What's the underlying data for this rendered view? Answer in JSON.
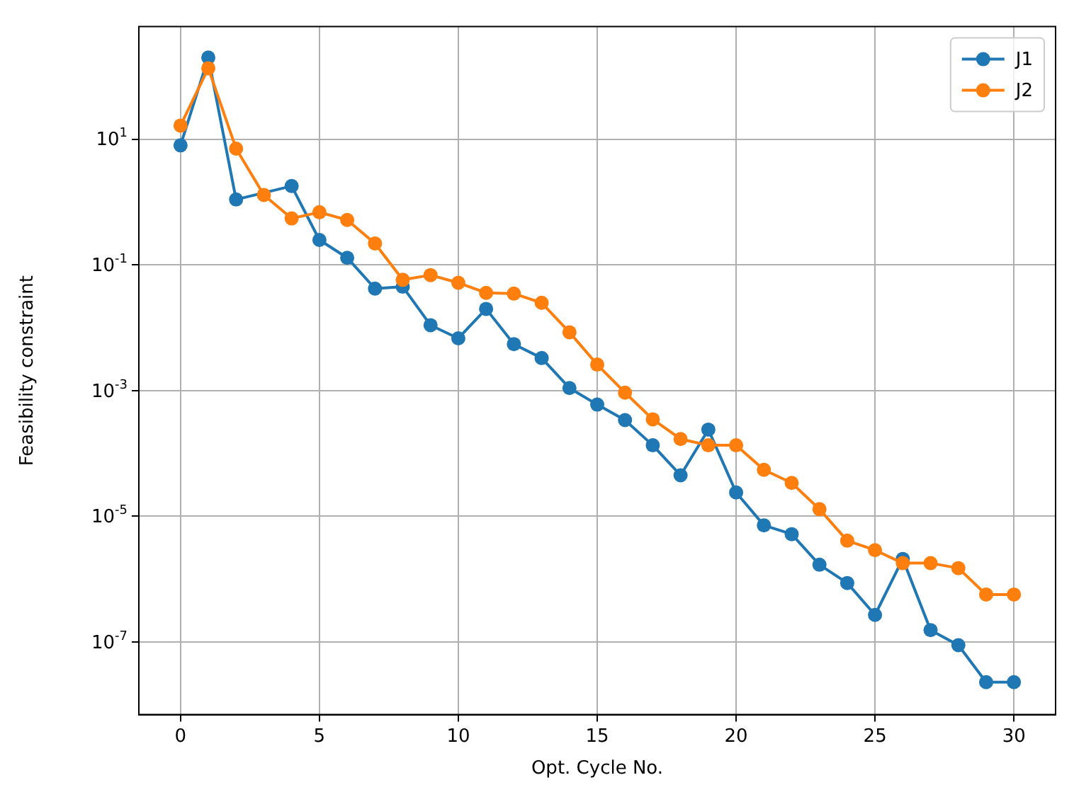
{
  "chart_data": {
    "type": "line",
    "xlabel": "Opt. Cycle No.",
    "ylabel": "Feasibility constraint",
    "x": [
      0,
      1,
      2,
      3,
      4,
      5,
      6,
      7,
      8,
      9,
      10,
      11,
      12,
      13,
      14,
      15,
      16,
      17,
      18,
      19,
      20,
      21,
      22,
      23,
      24,
      25,
      26,
      27,
      28,
      29,
      30
    ],
    "series": [
      {
        "name": "J1",
        "color": "#1f77b4",
        "values": [
          8,
          200,
          1.1,
          null,
          1.8,
          0.25,
          0.13,
          0.042,
          0.045,
          0.011,
          0.0068,
          0.02,
          0.0055,
          0.0033,
          0.0011,
          0.0006,
          0.00034,
          0.000135,
          4.5e-05,
          0.00024,
          2.4e-05,
          7.2e-06,
          5.2e-06,
          1.7e-06,
          8.7e-07,
          2.7e-07,
          2.1e-06,
          1.55e-07,
          8.9e-08,
          2.3e-08,
          2.3e-08
        ]
      },
      {
        "name": "J2",
        "color": "#ff7f0e",
        "values": [
          16.5,
          135,
          7.1,
          1.3,
          0.55,
          0.69,
          0.52,
          0.22,
          0.058,
          0.069,
          0.052,
          0.036,
          0.035,
          0.025,
          0.0085,
          0.0026,
          0.00093,
          0.00035,
          0.00017,
          0.000135,
          0.000135,
          5.5e-05,
          3.4e-05,
          1.3e-05,
          4.1e-06,
          2.9e-06,
          1.8e-06,
          1.8e-06,
          1.5e-06,
          5.7e-07,
          5.7e-07
        ]
      }
    ],
    "log": true,
    "xlim": [
      -1.5,
      31.5
    ],
    "ylim": [
      7.4e-09,
      620
    ],
    "xticks": [
      0,
      5,
      10,
      15,
      20,
      25,
      30
    ],
    "yticks": [
      {
        "value": 10,
        "label": "10$^{1}$"
      },
      {
        "value": 0.1,
        "label": "10$^{-1}$"
      },
      {
        "value": 0.001,
        "label": "10$^{-3}$"
      },
      {
        "value": 1e-05,
        "label": "10$^{-5}$"
      },
      {
        "value": 1e-07,
        "label": "10$^{-7}$"
      }
    ],
    "grid": true,
    "legend": "top right",
    "marker": "circle",
    "line_style": "solid"
  }
}
